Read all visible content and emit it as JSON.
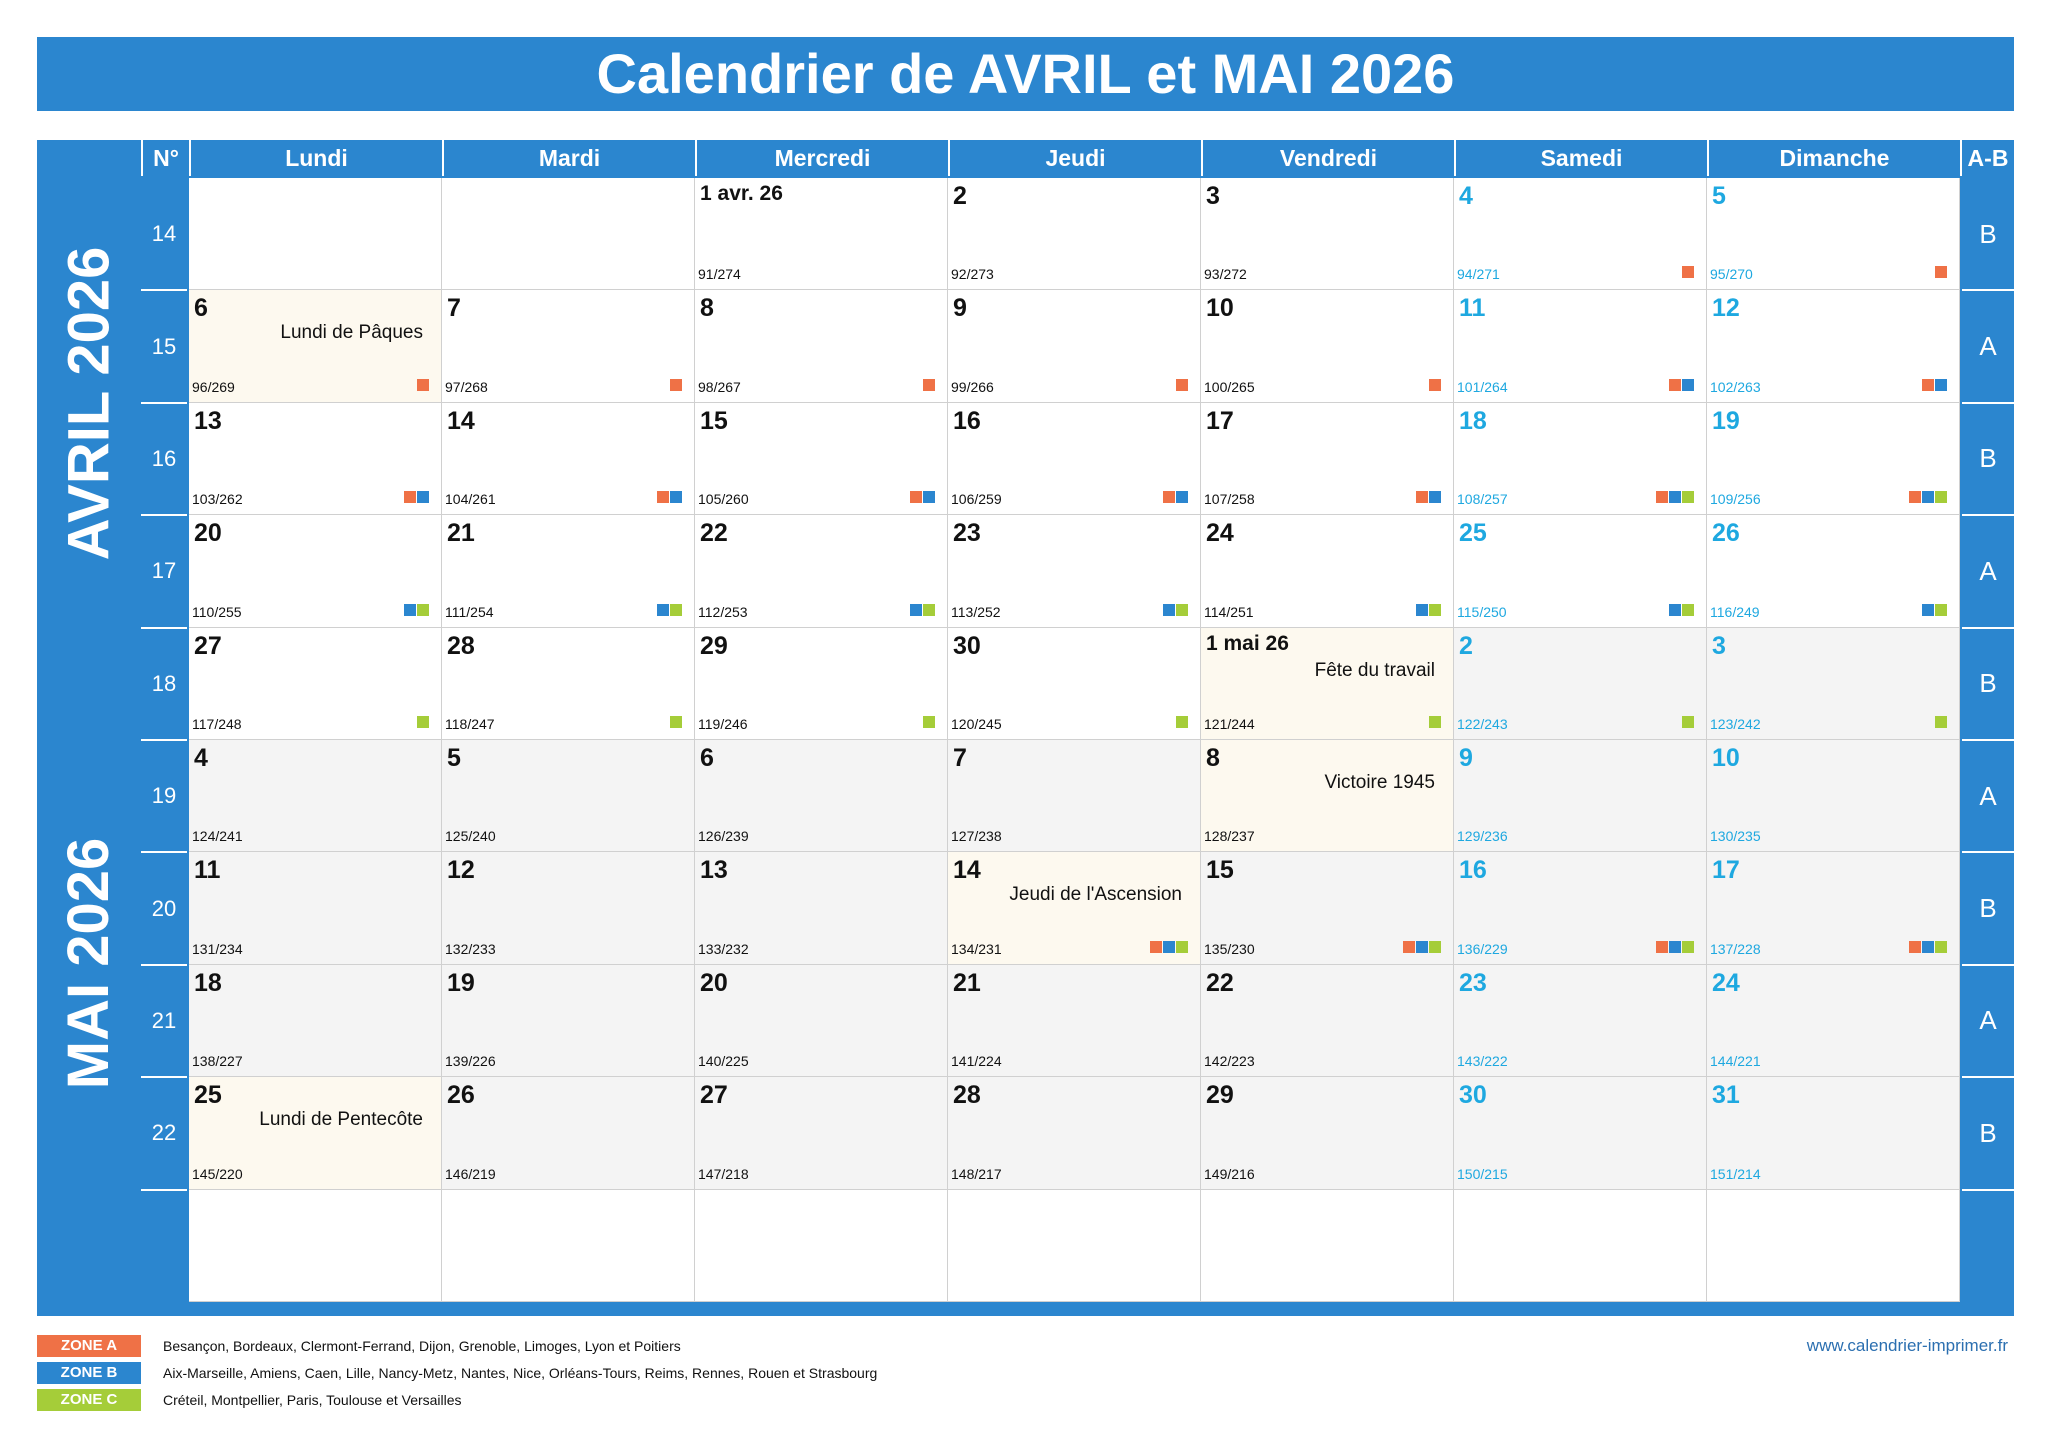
{
  "title": "Calendrier de AVRIL et MAI 2026",
  "header": {
    "num_label": "N°",
    "days": [
      "Lundi",
      "Mardi",
      "Mercredi",
      "Jeudi",
      "Vendredi",
      "Samedi",
      "Dimanche"
    ],
    "ab_label": "A-B"
  },
  "months": {
    "april": "AVRIL 2026",
    "may": "MAI 2026"
  },
  "colors": {
    "brand": "#2b86cf",
    "zone_a": "#ef7146",
    "zone_b": "#2b86cf",
    "zone_c": "#a5cd39",
    "weekend_text": "#1ea8e0",
    "holiday_bg": "#fdf9ef",
    "may_bg": "#f4f4f4"
  },
  "weeks": [
    {
      "num": "14",
      "ab": "B",
      "days": [
        null,
        null,
        {
          "day": "1 avr. 26",
          "ord": "91/274",
          "small": true
        },
        {
          "day": "2",
          "ord": "92/273"
        },
        {
          "day": "3",
          "ord": "93/272"
        },
        {
          "day": "4",
          "ord": "94/271",
          "zones": [
            "A"
          ]
        },
        {
          "day": "5",
          "ord": "95/270",
          "zones": [
            "A"
          ]
        }
      ]
    },
    {
      "num": "15",
      "ab": "A",
      "days": [
        {
          "day": "6",
          "ord": "96/269",
          "holiday": "Lundi de Pâques",
          "zones": [
            "A"
          ]
        },
        {
          "day": "7",
          "ord": "97/268",
          "zones": [
            "A"
          ]
        },
        {
          "day": "8",
          "ord": "98/267",
          "zones": [
            "A"
          ]
        },
        {
          "day": "9",
          "ord": "99/266",
          "zones": [
            "A"
          ]
        },
        {
          "day": "10",
          "ord": "100/265",
          "zones": [
            "A"
          ]
        },
        {
          "day": "11",
          "ord": "101/264",
          "zones": [
            "A",
            "B"
          ]
        },
        {
          "day": "12",
          "ord": "102/263",
          "zones": [
            "A",
            "B"
          ]
        }
      ]
    },
    {
      "num": "16",
      "ab": "B",
      "days": [
        {
          "day": "13",
          "ord": "103/262",
          "zones": [
            "A",
            "B"
          ]
        },
        {
          "day": "14",
          "ord": "104/261",
          "zones": [
            "A",
            "B"
          ]
        },
        {
          "day": "15",
          "ord": "105/260",
          "zones": [
            "A",
            "B"
          ]
        },
        {
          "day": "16",
          "ord": "106/259",
          "zones": [
            "A",
            "B"
          ]
        },
        {
          "day": "17",
          "ord": "107/258",
          "zones": [
            "A",
            "B"
          ]
        },
        {
          "day": "18",
          "ord": "108/257",
          "zones": [
            "A",
            "B",
            "C"
          ]
        },
        {
          "day": "19",
          "ord": "109/256",
          "zones": [
            "A",
            "B",
            "C"
          ]
        }
      ]
    },
    {
      "num": "17",
      "ab": "A",
      "days": [
        {
          "day": "20",
          "ord": "110/255",
          "zones": [
            "B",
            "C"
          ]
        },
        {
          "day": "21",
          "ord": "111/254",
          "zones": [
            "B",
            "C"
          ]
        },
        {
          "day": "22",
          "ord": "112/253",
          "zones": [
            "B",
            "C"
          ]
        },
        {
          "day": "23",
          "ord": "113/252",
          "zones": [
            "B",
            "C"
          ]
        },
        {
          "day": "24",
          "ord": "114/251",
          "zones": [
            "B",
            "C"
          ]
        },
        {
          "day": "25",
          "ord": "115/250",
          "zones": [
            "B",
            "C"
          ]
        },
        {
          "day": "26",
          "ord": "116/249",
          "zones": [
            "B",
            "C"
          ]
        }
      ]
    },
    {
      "num": "18",
      "ab": "B",
      "days": [
        {
          "day": "27",
          "ord": "117/248",
          "zones": [
            "C"
          ]
        },
        {
          "day": "28",
          "ord": "118/247",
          "zones": [
            "C"
          ]
        },
        {
          "day": "29",
          "ord": "119/246",
          "zones": [
            "C"
          ]
        },
        {
          "day": "30",
          "ord": "120/245",
          "zones": [
            "C"
          ]
        },
        {
          "day": "1 mai 26",
          "ord": "121/244",
          "small": true,
          "may": true,
          "holiday": "Fête du travail",
          "zones": [
            "C"
          ]
        },
        {
          "day": "2",
          "ord": "122/243",
          "may": true,
          "zones": [
            "C"
          ]
        },
        {
          "day": "3",
          "ord": "123/242",
          "may": true,
          "zones": [
            "C"
          ]
        }
      ]
    },
    {
      "num": "19",
      "ab": "A",
      "days": [
        {
          "day": "4",
          "ord": "124/241",
          "may": true
        },
        {
          "day": "5",
          "ord": "125/240",
          "may": true
        },
        {
          "day": "6",
          "ord": "126/239",
          "may": true
        },
        {
          "day": "7",
          "ord": "127/238",
          "may": true
        },
        {
          "day": "8",
          "ord": "128/237",
          "may": true,
          "holiday": "Victoire 1945"
        },
        {
          "day": "9",
          "ord": "129/236",
          "may": true
        },
        {
          "day": "10",
          "ord": "130/235",
          "may": true
        }
      ]
    },
    {
      "num": "20",
      "ab": "B",
      "days": [
        {
          "day": "11",
          "ord": "131/234",
          "may": true
        },
        {
          "day": "12",
          "ord": "132/233",
          "may": true
        },
        {
          "day": "13",
          "ord": "133/232",
          "may": true
        },
        {
          "day": "14",
          "ord": "134/231",
          "may": true,
          "holiday": "Jeudi de l'Ascension",
          "zones": [
            "A",
            "B",
            "C"
          ]
        },
        {
          "day": "15",
          "ord": "135/230",
          "may": true,
          "zones": [
            "A",
            "B",
            "C"
          ]
        },
        {
          "day": "16",
          "ord": "136/229",
          "may": true,
          "zones": [
            "A",
            "B",
            "C"
          ]
        },
        {
          "day": "17",
          "ord": "137/228",
          "may": true,
          "zones": [
            "A",
            "B",
            "C"
          ]
        }
      ]
    },
    {
      "num": "21",
      "ab": "A",
      "days": [
        {
          "day": "18",
          "ord": "138/227",
          "may": true
        },
        {
          "day": "19",
          "ord": "139/226",
          "may": true
        },
        {
          "day": "20",
          "ord": "140/225",
          "may": true
        },
        {
          "day": "21",
          "ord": "141/224",
          "may": true
        },
        {
          "day": "22",
          "ord": "142/223",
          "may": true
        },
        {
          "day": "23",
          "ord": "143/222",
          "may": true
        },
        {
          "day": "24",
          "ord": "144/221",
          "may": true
        }
      ]
    },
    {
      "num": "22",
      "ab": "B",
      "days": [
        {
          "day": "25",
          "ord": "145/220",
          "may": true,
          "holiday": "Lundi de Pentecôte"
        },
        {
          "day": "26",
          "ord": "146/219",
          "may": true
        },
        {
          "day": "27",
          "ord": "147/218",
          "may": true
        },
        {
          "day": "28",
          "ord": "148/217",
          "may": true
        },
        {
          "day": "29",
          "ord": "149/216",
          "may": true
        },
        {
          "day": "30",
          "ord": "150/215",
          "may": true
        },
        {
          "day": "31",
          "ord": "151/214",
          "may": true
        }
      ]
    },
    {
      "num": "",
      "ab": "",
      "days": [
        null,
        null,
        null,
        null,
        null,
        null,
        null
      ]
    }
  ],
  "legend": [
    {
      "tag": "ZONE A",
      "text": "Besançon, Bordeaux, Clermont-Ferrand, Dijon, Grenoble, Limoges, Lyon et Poitiers",
      "color": "#ef7146"
    },
    {
      "tag": "ZONE B",
      "text": "Aix-Marseille, Amiens, Caen, Lille, Nancy-Metz, Nantes, Nice, Orléans-Tours, Reims, Rennes, Rouen et Strasbourg",
      "color": "#2b86cf"
    },
    {
      "tag": "ZONE C",
      "text": "Créteil, Montpellier, Paris, Toulouse et Versailles",
      "color": "#a5cd39"
    }
  ],
  "site_url": "www.calendrier-imprimer.fr"
}
